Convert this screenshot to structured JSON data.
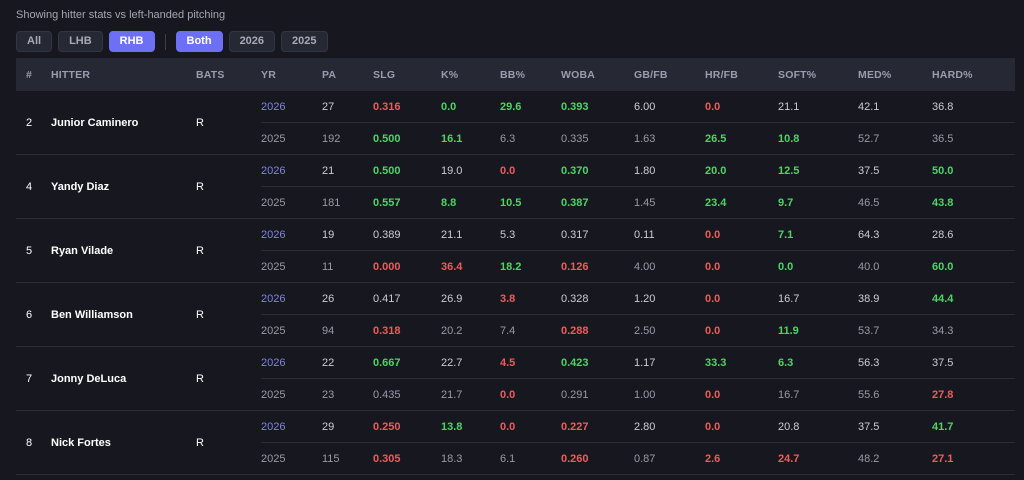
{
  "caption": "Showing hitter stats vs left-handed pitching",
  "filters": {
    "hand": [
      {
        "label": "All",
        "active": false
      },
      {
        "label": "LHB",
        "active": false
      },
      {
        "label": "RHB",
        "active": true
      }
    ],
    "year": [
      {
        "label": "Both",
        "active": true
      },
      {
        "label": "2026",
        "active": false
      },
      {
        "label": "2025",
        "active": false
      }
    ]
  },
  "columns": [
    "#",
    "HITTER",
    "BATS",
    "YR",
    "PA",
    "SLG",
    "K%",
    "BB%",
    "WOBA",
    "GB/FB",
    "HR/FB",
    "SOFT%",
    "MED%",
    "HARD%"
  ],
  "hitters": [
    {
      "rank": "2",
      "name": "Junior Caminero",
      "bats": "R",
      "rows": [
        {
          "yr": "2026",
          "cells": [
            [
              "27",
              ""
            ],
            [
              "0.316",
              "bad"
            ],
            [
              "0.0",
              "good"
            ],
            [
              "29.6",
              "good"
            ],
            [
              "0.393",
              "good"
            ],
            [
              "6.00",
              ""
            ],
            [
              "0.0",
              "bad"
            ],
            [
              "21.1",
              ""
            ],
            [
              "42.1",
              ""
            ],
            [
              "36.8",
              ""
            ]
          ]
        },
        {
          "yr": "2025",
          "cells": [
            [
              "192",
              ""
            ],
            [
              "0.500",
              "good"
            ],
            [
              "16.1",
              "good"
            ],
            [
              "6.3",
              ""
            ],
            [
              "0.335",
              ""
            ],
            [
              "1.63",
              ""
            ],
            [
              "26.5",
              "good"
            ],
            [
              "10.8",
              "good"
            ],
            [
              "52.7",
              ""
            ],
            [
              "36.5",
              ""
            ]
          ]
        }
      ]
    },
    {
      "rank": "4",
      "name": "Yandy Diaz",
      "bats": "R",
      "rows": [
        {
          "yr": "2026",
          "cells": [
            [
              "21",
              ""
            ],
            [
              "0.500",
              "good"
            ],
            [
              "19.0",
              ""
            ],
            [
              "0.0",
              "bad"
            ],
            [
              "0.370",
              "good"
            ],
            [
              "1.80",
              ""
            ],
            [
              "20.0",
              "good"
            ],
            [
              "12.5",
              "good"
            ],
            [
              "37.5",
              ""
            ],
            [
              "50.0",
              "good"
            ]
          ]
        },
        {
          "yr": "2025",
          "cells": [
            [
              "181",
              ""
            ],
            [
              "0.557",
              "good"
            ],
            [
              "8.8",
              "good"
            ],
            [
              "10.5",
              "good"
            ],
            [
              "0.387",
              "good"
            ],
            [
              "1.45",
              ""
            ],
            [
              "23.4",
              "good"
            ],
            [
              "9.7",
              "good"
            ],
            [
              "46.5",
              ""
            ],
            [
              "43.8",
              "good"
            ]
          ]
        }
      ]
    },
    {
      "rank": "5",
      "name": "Ryan Vilade",
      "bats": "R",
      "rows": [
        {
          "yr": "2026",
          "cells": [
            [
              "19",
              ""
            ],
            [
              "0.389",
              ""
            ],
            [
              "21.1",
              ""
            ],
            [
              "5.3",
              ""
            ],
            [
              "0.317",
              ""
            ],
            [
              "0.11",
              ""
            ],
            [
              "0.0",
              "bad"
            ],
            [
              "7.1",
              "good"
            ],
            [
              "64.3",
              ""
            ],
            [
              "28.6",
              ""
            ]
          ]
        },
        {
          "yr": "2025",
          "cells": [
            [
              "11",
              ""
            ],
            [
              "0.000",
              "bad"
            ],
            [
              "36.4",
              "bad"
            ],
            [
              "18.2",
              "good"
            ],
            [
              "0.126",
              "bad"
            ],
            [
              "4.00",
              ""
            ],
            [
              "0.0",
              "bad"
            ],
            [
              "0.0",
              "good"
            ],
            [
              "40.0",
              ""
            ],
            [
              "60.0",
              "good"
            ]
          ]
        }
      ]
    },
    {
      "rank": "6",
      "name": "Ben Williamson",
      "bats": "R",
      "rows": [
        {
          "yr": "2026",
          "cells": [
            [
              "26",
              ""
            ],
            [
              "0.417",
              ""
            ],
            [
              "26.9",
              ""
            ],
            [
              "3.8",
              "bad"
            ],
            [
              "0.328",
              ""
            ],
            [
              "1.20",
              ""
            ],
            [
              "0.0",
              "bad"
            ],
            [
              "16.7",
              ""
            ],
            [
              "38.9",
              ""
            ],
            [
              "44.4",
              "good"
            ]
          ]
        },
        {
          "yr": "2025",
          "cells": [
            [
              "94",
              ""
            ],
            [
              "0.318",
              "bad"
            ],
            [
              "20.2",
              ""
            ],
            [
              "7.4",
              ""
            ],
            [
              "0.288",
              "bad"
            ],
            [
              "2.50",
              ""
            ],
            [
              "0.0",
              "bad"
            ],
            [
              "11.9",
              "good"
            ],
            [
              "53.7",
              ""
            ],
            [
              "34.3",
              ""
            ]
          ]
        }
      ]
    },
    {
      "rank": "7",
      "name": "Jonny DeLuca",
      "bats": "R",
      "rows": [
        {
          "yr": "2026",
          "cells": [
            [
              "22",
              ""
            ],
            [
              "0.667",
              "good"
            ],
            [
              "22.7",
              ""
            ],
            [
              "4.5",
              "bad"
            ],
            [
              "0.423",
              "good"
            ],
            [
              "1.17",
              ""
            ],
            [
              "33.3",
              "good"
            ],
            [
              "6.3",
              "good"
            ],
            [
              "56.3",
              ""
            ],
            [
              "37.5",
              ""
            ]
          ]
        },
        {
          "yr": "2025",
          "cells": [
            [
              "23",
              ""
            ],
            [
              "0.435",
              ""
            ],
            [
              "21.7",
              ""
            ],
            [
              "0.0",
              "bad"
            ],
            [
              "0.291",
              ""
            ],
            [
              "1.00",
              ""
            ],
            [
              "0.0",
              "bad"
            ],
            [
              "16.7",
              ""
            ],
            [
              "55.6",
              ""
            ],
            [
              "27.8",
              "bad"
            ]
          ]
        }
      ]
    },
    {
      "rank": "8",
      "name": "Nick Fortes",
      "bats": "R",
      "rows": [
        {
          "yr": "2026",
          "cells": [
            [
              "29",
              ""
            ],
            [
              "0.250",
              "bad"
            ],
            [
              "13.8",
              "good"
            ],
            [
              "0.0",
              "bad"
            ],
            [
              "0.227",
              "bad"
            ],
            [
              "2.80",
              ""
            ],
            [
              "0.0",
              "bad"
            ],
            [
              "20.8",
              ""
            ],
            [
              "37.5",
              ""
            ],
            [
              "41.7",
              "good"
            ]
          ]
        },
        {
          "yr": "2025",
          "cells": [
            [
              "115",
              ""
            ],
            [
              "0.305",
              "bad"
            ],
            [
              "18.3",
              ""
            ],
            [
              "6.1",
              ""
            ],
            [
              "0.260",
              "bad"
            ],
            [
              "0.87",
              ""
            ],
            [
              "2.6",
              "bad"
            ],
            [
              "24.7",
              "bad"
            ],
            [
              "48.2",
              ""
            ],
            [
              "27.1",
              "bad"
            ]
          ]
        }
      ]
    }
  ]
}
